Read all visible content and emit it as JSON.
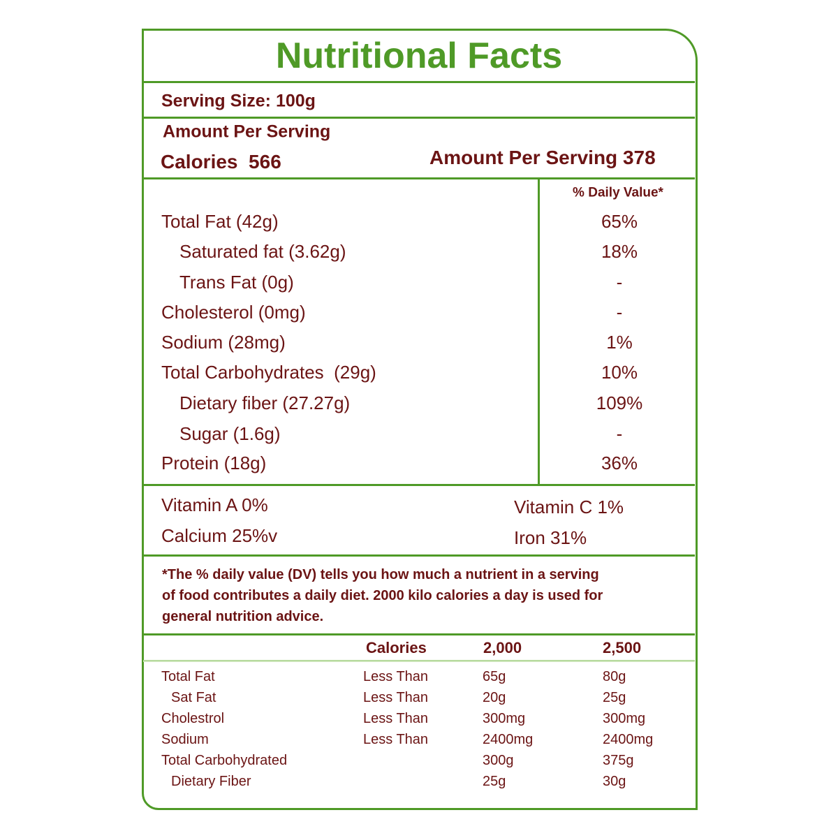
{
  "title": "Nutritional Facts",
  "serving_size": "Serving Size: 100g",
  "amount_per_serving": "Amount Per Serving",
  "calories": "Calories  566",
  "amount_per_serving_value": "Amount Per Serving 378",
  "daily_value_header": "% Daily Value*",
  "nutrients": [
    {
      "name": "Total Fat (42g)",
      "dv": "65%"
    },
    {
      "name": "Saturated fat (3.62g)",
      "dv": "18%"
    },
    {
      "name": "Trans Fat (0g)",
      "dv": "-"
    },
    {
      "name": "Cholesterol (0mg)",
      "dv": "-"
    },
    {
      "name": "Sodium (28mg)",
      "dv": "1%"
    },
    {
      "name": "Total Carbohydrates  (29g)",
      "dv": "10%"
    },
    {
      "name": "Dietary fiber (27.27g)",
      "dv": "109%"
    },
    {
      "name": "Sugar (1.6g)",
      "dv": "-"
    },
    {
      "name": "Protein (18g)",
      "dv": "36%"
    }
  ],
  "vitamins": [
    "Vitamin A 0%",
    "Vitamin C 1%",
    "Calcium 25%v",
    "Iron 31%"
  ],
  "footnote": [
    "*The % daily value (DV) tells you how much a nutrient in a serving",
    "of food contributes a daily diet. 2000 kilo calories a day is used for",
    "general nutrition advice."
  ],
  "reference_table": {
    "header": [
      "Calories",
      "2,000",
      "2,500"
    ],
    "rows": [
      {
        "name": "Total Fat",
        "limit": "Less Than",
        "v2000": "65g",
        "v2500": "80g"
      },
      {
        "name": "Sat Fat",
        "limit": "Less Than",
        "v2000": "20g",
        "v2500": "25g"
      },
      {
        "name": "Cholestrol",
        "limit": "Less Than",
        "v2000": "300mg",
        "v2500": "300mg"
      },
      {
        "name": "Sodium",
        "limit": "Less Than",
        "v2000": "2400mg",
        "v2500": "2400mg"
      },
      {
        "name": "Total Carbohydrated",
        "v2000": "300g",
        "v2500": "375g"
      },
      {
        "name": "Dietary Fiber",
        "v2000": "25g",
        "v2500": "30g"
      }
    ]
  }
}
